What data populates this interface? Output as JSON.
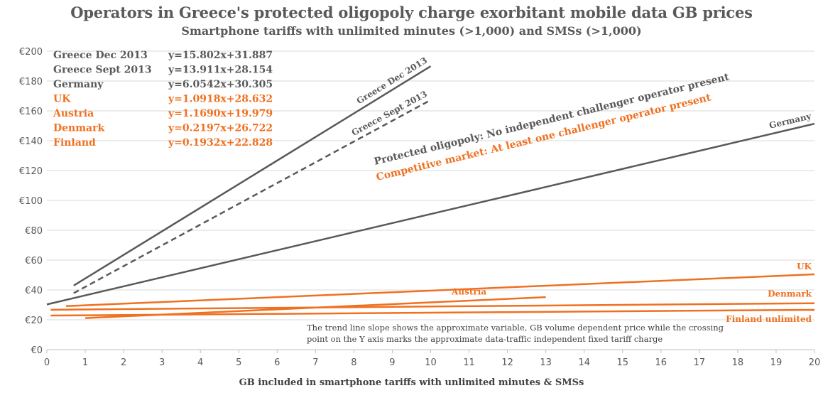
{
  "chart_data": {
    "type": "line",
    "title": "Operators in Greece's protected oligopoly charge exorbitant mobile data GB prices",
    "subtitle": "Smartphone tariffs with unlimited minutes (>1,000) and SMSs (>1,000)",
    "xlabel": "GB included in smartphone tariffs with unlimited minutes & SMSs",
    "ylabel": "",
    "xlim": [
      0,
      20
    ],
    "ylim": [
      0,
      200
    ],
    "x_ticks": [
      "0",
      "1",
      "2",
      "3",
      "4",
      "5",
      "6",
      "7",
      "8",
      "9",
      "10",
      "11",
      "12",
      "13",
      "14",
      "15",
      "16",
      "17",
      "18",
      "19",
      "20"
    ],
    "y_ticks": [
      "€0",
      "€20",
      "€40",
      "€60",
      "€80",
      "€100",
      "€120",
      "€140",
      "€160",
      "€180",
      "€200"
    ],
    "grid": "horizontal",
    "series": [
      {
        "name": "Greece Dec 2013",
        "label": "Greece Dec 2013",
        "color": "#595959",
        "dash": false,
        "x": [
          0.7,
          10
        ],
        "y": [
          42.95,
          189.91
        ]
      },
      {
        "name": "Greece Sept 2013",
        "label": "Greece Sept 2013",
        "color": "#595959",
        "dash": true,
        "x": [
          0.7,
          10
        ],
        "y": [
          37.89,
          167.26
        ]
      },
      {
        "name": "Germany",
        "label": "Germany",
        "color": "#595959",
        "dash": false,
        "x": [
          0,
          20
        ],
        "y": [
          30.31,
          151.39
        ]
      },
      {
        "name": "UK",
        "label": "UK",
        "color": "#f07020",
        "dash": false,
        "x": [
          0.5,
          20
        ],
        "y": [
          29.18,
          50.47
        ]
      },
      {
        "name": "Austria",
        "label": "Austria",
        "color": "#f07020",
        "dash": false,
        "x": [
          1,
          13
        ],
        "y": [
          21.15,
          35.18
        ]
      },
      {
        "name": "Denmark",
        "label": "Denmark",
        "color": "#f07020",
        "dash": false,
        "x": [
          0.1,
          20
        ],
        "y": [
          26.74,
          31.11
        ]
      },
      {
        "name": "Finland",
        "label": "Finland unlimited",
        "color": "#f07020",
        "dash": false,
        "x": [
          0.1,
          20
        ],
        "y": [
          22.85,
          26.69
        ]
      }
    ],
    "equations": [
      {
        "name": "Greece Dec 2013",
        "eq": "y=15.802x+31.887",
        "color": "#595959"
      },
      {
        "name": "Greece Sept 2013",
        "eq": "y=13.911x+28.154",
        "color": "#595959"
      },
      {
        "name": "Germany",
        "eq": "y=6.0542x+30.305",
        "color": "#595959"
      },
      {
        "name": "UK",
        "eq": "y=1.0918x+28.632",
        "color": "#f07020"
      },
      {
        "name": "Austria",
        "eq": "y=1.1690x+19.979",
        "color": "#f07020"
      },
      {
        "name": "Denmark",
        "eq": "y=0.2197x+26.722",
        "color": "#f07020"
      },
      {
        "name": "Finland",
        "eq": "y=0.1932x+22.828",
        "color": "#f07020"
      }
    ],
    "annotations": [
      {
        "text": "Protected oligopoly:  No independent challenger operator  present",
        "color": "#595959"
      },
      {
        "text": "Competitive market: At least one challenger operator  present",
        "color": "#f07020"
      }
    ],
    "note": [
      "The trend line slope shows the approximate variable, GB volume dependent price while the crossing",
      "point on the Y axis marks the approximate data-traffic independent fixed tariff charge"
    ]
  }
}
